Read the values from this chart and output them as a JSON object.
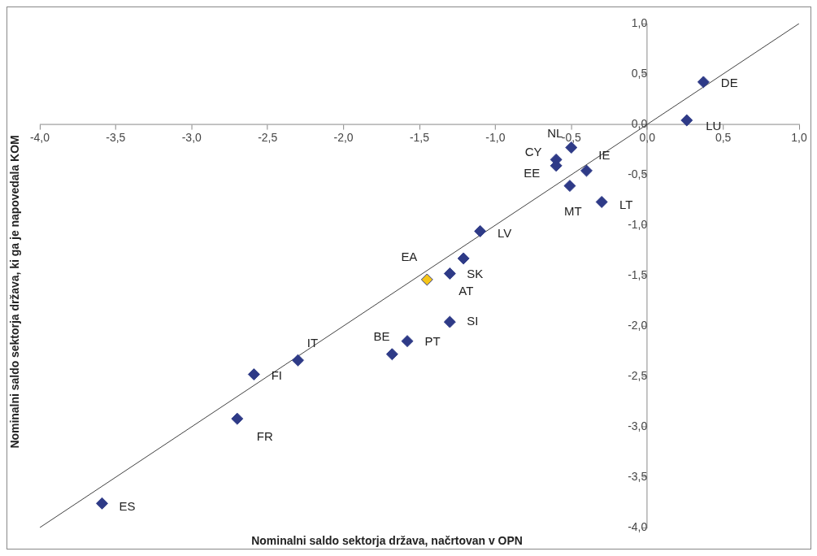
{
  "chart_data": {
    "type": "scatter",
    "xlabel": "Nominalni saldo sektorja država, načrtovan v OPN",
    "ylabel": "Nominalni saldo sektorja država, ki ga je napovedala KOM",
    "xlim": [
      -4,
      1
    ],
    "ylim": [
      -4,
      1
    ],
    "xticks": [
      {
        "value": -4,
        "label": "-4,0"
      },
      {
        "value": -3.5,
        "label": "-3,5"
      },
      {
        "value": -3,
        "label": "-3,0"
      },
      {
        "value": -2.5,
        "label": "-2,5"
      },
      {
        "value": -2,
        "label": "-2,0"
      },
      {
        "value": -1.5,
        "label": "-1,5"
      },
      {
        "value": -1,
        "label": "-1,0"
      },
      {
        "value": -0.5,
        "label": "-0,5"
      },
      {
        "value": 0,
        "label": "0,0"
      },
      {
        "value": 0.5,
        "label": "0,5"
      },
      {
        "value": 1,
        "label": "1,0"
      }
    ],
    "yticks": [
      {
        "value": -4,
        "label": "-4,0"
      },
      {
        "value": -3.5,
        "label": "-3,5"
      },
      {
        "value": -3,
        "label": "-3,0"
      },
      {
        "value": -2.5,
        "label": "-2,5"
      },
      {
        "value": -2,
        "label": "-2,0"
      },
      {
        "value": -1.5,
        "label": "-1,5"
      },
      {
        "value": -1,
        "label": "-1,0"
      },
      {
        "value": -0.5,
        "label": "-0,5"
      },
      {
        "value": 0,
        "label": "0,0"
      },
      {
        "value": 0.5,
        "label": "0,5"
      },
      {
        "value": 1,
        "label": "1,0"
      }
    ],
    "grid": false,
    "legend": false,
    "marker": "diamond",
    "series": [
      {
        "color": "#2e3a87",
        "colors": [
          "#2e3a87",
          "#2e3a87",
          "#2e3a87",
          "#2e3a87",
          "#2e3a87",
          "#2e3a87",
          "#2e3a87",
          "#2e3a87",
          "#2e3a87",
          "#2e3a87",
          "#2e3a87",
          "#f5c518",
          "#2e3a87",
          "#2e3a87",
          "#2e3a87",
          "#2e3a87",
          "#2e3a87",
          "#2e3a87",
          "#2e3a87"
        ],
        "x": [
          0.37,
          0.26,
          -0.5,
          -0.6,
          -0.6,
          -0.4,
          -0.51,
          -0.3,
          -1.1,
          -1.21,
          -1.3,
          -1.45,
          -1.3,
          -1.58,
          -1.68,
          -2.3,
          -2.59,
          -2.7,
          -3.59
        ],
        "values": [
          0.42,
          0.04,
          -0.23,
          -0.35,
          -0.41,
          -0.46,
          -0.61,
          -0.77,
          -1.06,
          -1.33,
          -1.48,
          -1.54,
          -1.96,
          -2.15,
          -2.28,
          -2.34,
          -2.48,
          -2.92,
          -3.76
        ]
      },
      {
        "type": "line",
        "color": "#404040",
        "marker": "none",
        "x": [
          -4,
          1
        ],
        "values": [
          -4,
          1
        ]
      }
    ],
    "annotations": [
      {
        "text": "DE",
        "x": 0.37,
        "y": 0.42
      },
      {
        "text": "LU",
        "x": 0.26,
        "y": 0.04
      },
      {
        "text": "NL",
        "x": -0.5,
        "y": -0.23
      },
      {
        "text": "CY",
        "x": -0.6,
        "y": -0.35
      },
      {
        "text": "EE",
        "x": -0.6,
        "y": -0.41
      },
      {
        "text": "IE",
        "x": -0.4,
        "y": -0.46
      },
      {
        "text": "MT",
        "x": -0.51,
        "y": -0.61
      },
      {
        "text": "LT",
        "x": -0.3,
        "y": -0.77
      },
      {
        "text": "LV",
        "x": -1.1,
        "y": -1.06
      },
      {
        "text": "SK",
        "x": -1.21,
        "y": -1.33
      },
      {
        "text": "AT",
        "x": -1.3,
        "y": -1.48
      },
      {
        "text": "EA",
        "x": -1.45,
        "y": -1.54
      },
      {
        "text": "SI",
        "x": -1.3,
        "y": -1.96
      },
      {
        "text": "PT",
        "x": -1.58,
        "y": -2.15
      },
      {
        "text": "BE",
        "x": -1.68,
        "y": -2.28
      },
      {
        "text": "IT",
        "x": -2.3,
        "y": -2.34
      },
      {
        "text": "FI",
        "x": -2.59,
        "y": -2.48
      },
      {
        "text": "FR",
        "x": -2.7,
        "y": -2.92
      },
      {
        "text": "ES",
        "x": -3.59,
        "y": -3.76
      }
    ]
  }
}
